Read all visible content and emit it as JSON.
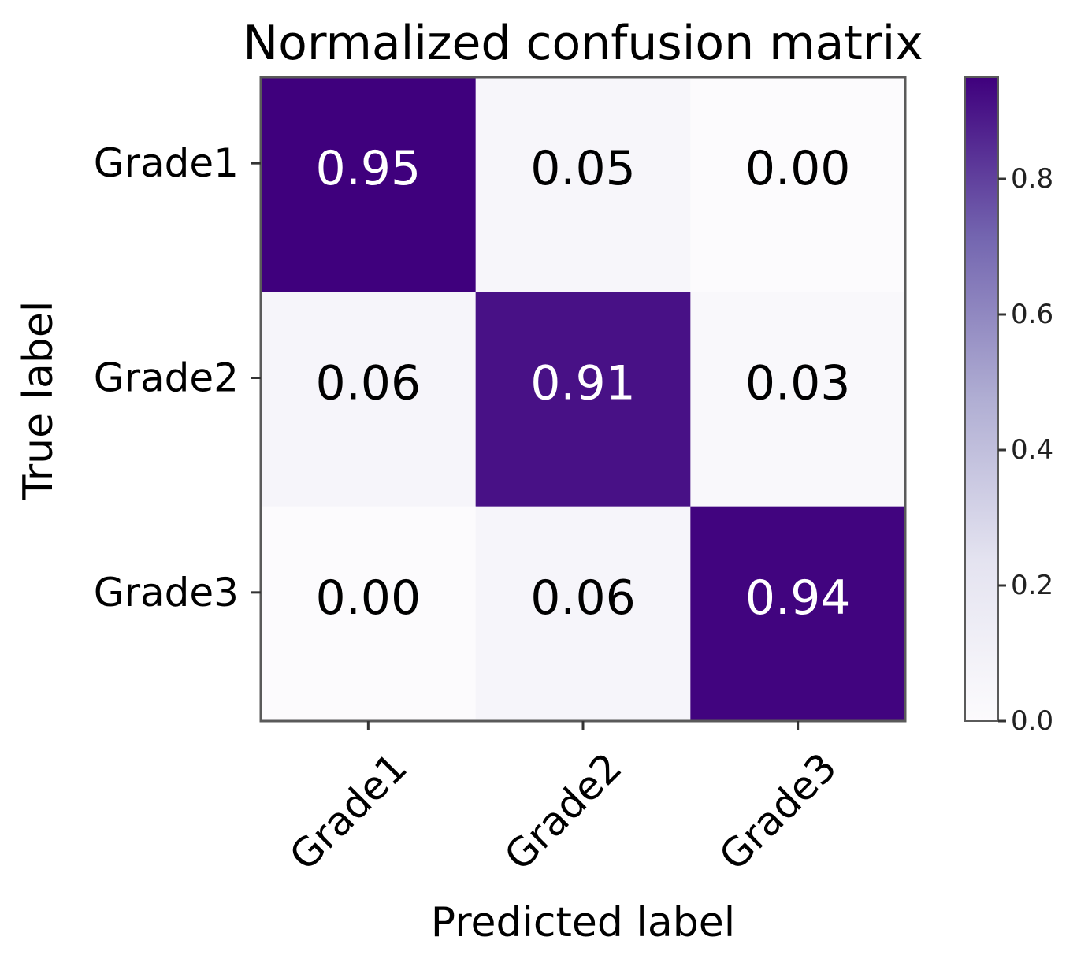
{
  "chart_data": {
    "type": "heatmap",
    "title": "Normalized confusion matrix",
    "xlabel": "Predicted label",
    "ylabel": "True label",
    "x_categories": [
      "Grade1",
      "Grade2",
      "Grade3"
    ],
    "y_categories": [
      "Grade1",
      "Grade2",
      "Grade3"
    ],
    "values": [
      [
        0.95,
        0.05,
        0.0
      ],
      [
        0.06,
        0.91,
        0.03
      ],
      [
        0.0,
        0.06,
        0.94
      ]
    ],
    "value_labels": [
      [
        "0.95",
        "0.05",
        "0.00"
      ],
      [
        "0.06",
        "0.91",
        "0.03"
      ],
      [
        "0.00",
        "0.06",
        "0.94"
      ]
    ],
    "colormap": "Purples",
    "color_low": "#fcfbfd",
    "color_high": "#3f007d",
    "text_color_dark": "#000000",
    "text_color_light": "#ffffff",
    "colorbar": {
      "range": [
        0.0,
        0.95
      ],
      "ticks": [
        0.0,
        0.2,
        0.4,
        0.6,
        0.8
      ],
      "tick_labels": [
        "0.0",
        "0.2",
        "0.4",
        "0.6",
        "0.8"
      ]
    }
  }
}
